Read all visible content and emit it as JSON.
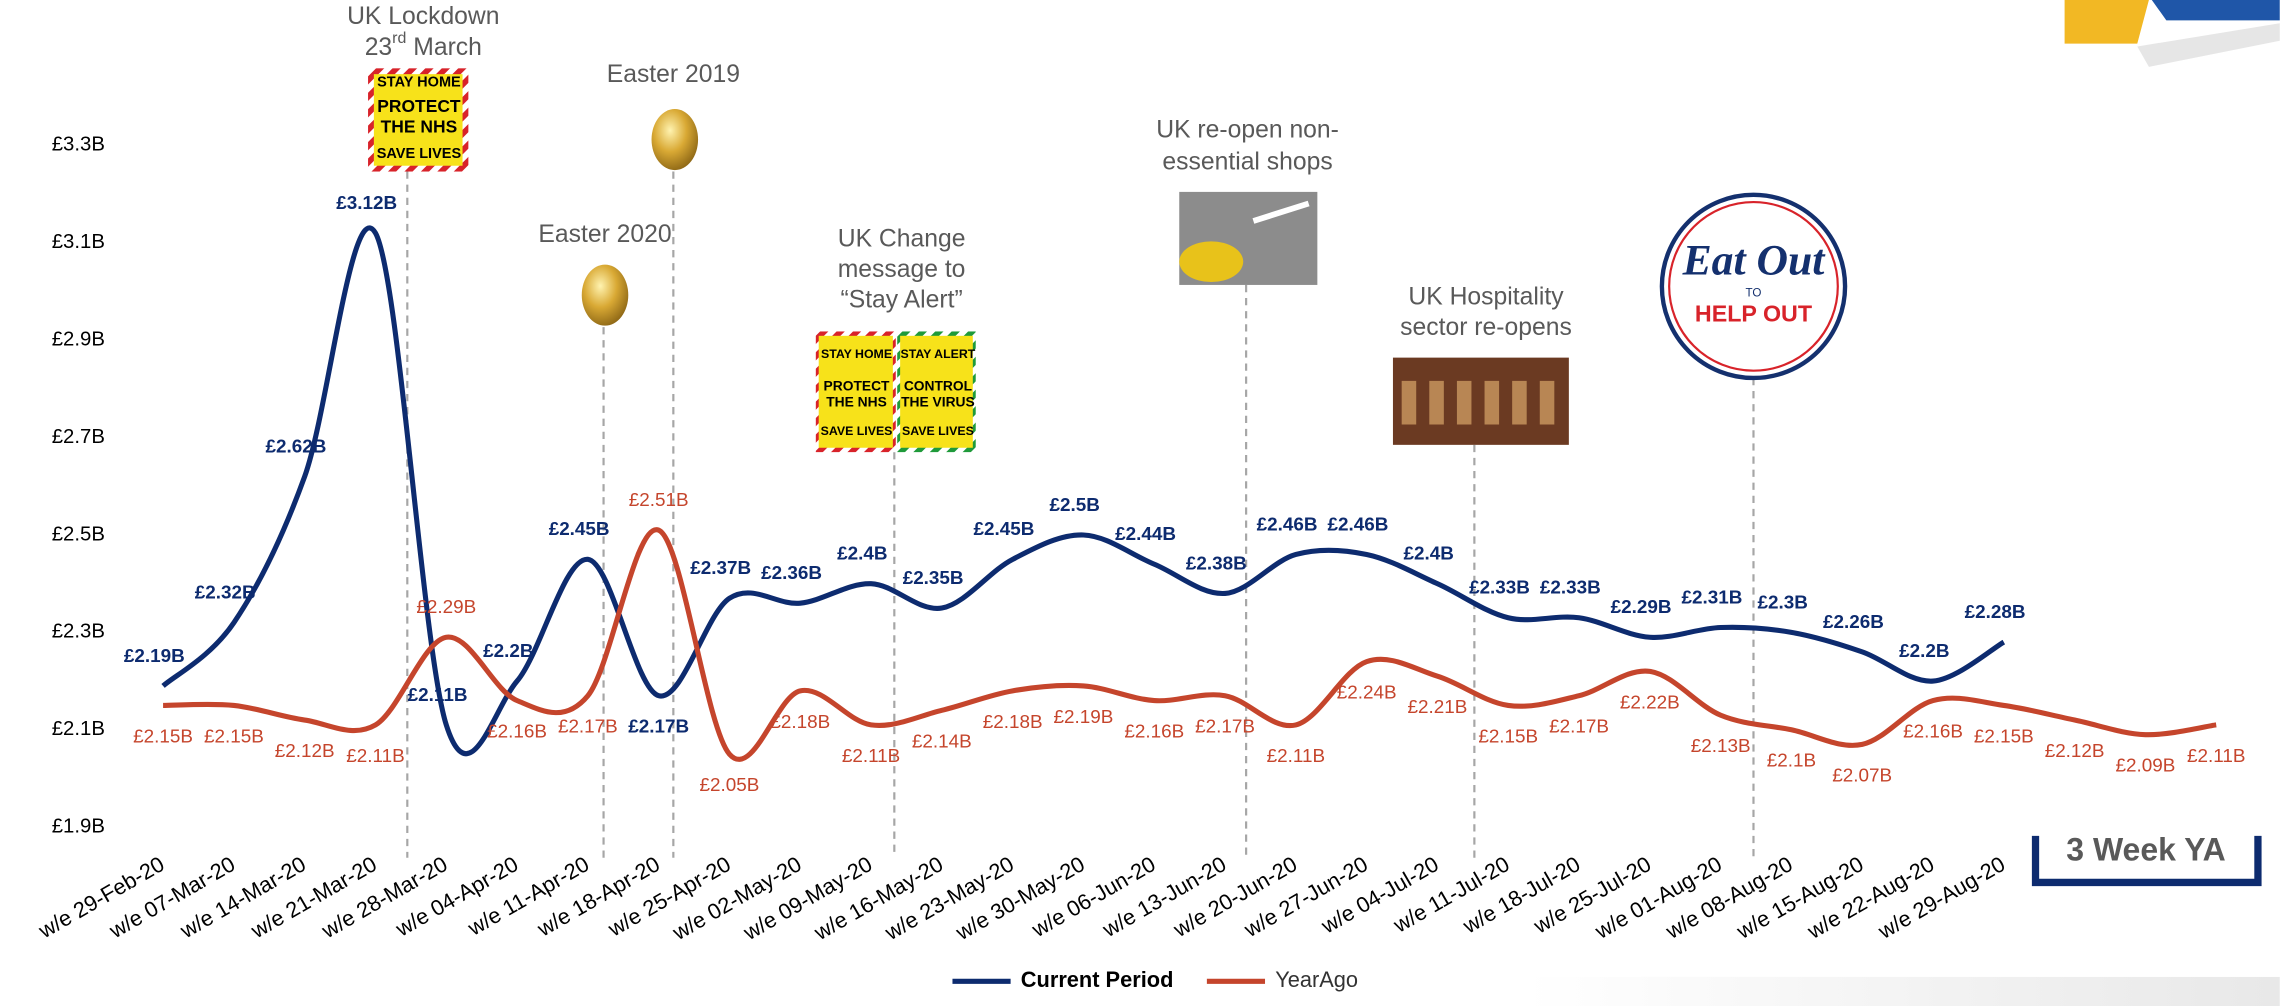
{
  "chart_data": {
    "type": "line",
    "categories": [
      "w/e 29-Feb-20",
      "w/e 07-Mar-20",
      "w/e 14-Mar-20",
      "w/e 21-Mar-20",
      "w/e 28-Mar-20",
      "w/e 04-Apr-20",
      "w/e 11-Apr-20",
      "w/e 18-Apr-20",
      "w/e 25-Apr-20",
      "w/e 02-May-20",
      "w/e 09-May-20",
      "w/e 16-May-20",
      "w/e 23-May-20",
      "w/e 30-May-20",
      "w/e 06-Jun-20",
      "w/e 13-Jun-20",
      "w/e 20-Jun-20",
      "w/e 27-Jun-20",
      "w/e 04-Jul-20",
      "w/e 11-Jul-20",
      "w/e 18-Jul-20",
      "w/e 25-Jul-20",
      "w/e 01-Aug-20",
      "w/e 08-Aug-20",
      "w/e 15-Aug-20",
      "w/e 22-Aug-20",
      "w/e 29-Aug-20",
      null,
      null,
      null
    ],
    "series": [
      {
        "name": "Current Period",
        "color": "#0d2b6f",
        "values": [
          2.19,
          2.32,
          2.62,
          3.12,
          2.11,
          2.2,
          2.45,
          2.17,
          2.37,
          2.36,
          2.4,
          2.35,
          2.45,
          2.5,
          2.44,
          2.38,
          2.46,
          2.46,
          2.4,
          2.33,
          2.33,
          2.29,
          2.31,
          2.3,
          2.26,
          2.2,
          2.28,
          null,
          null,
          null
        ],
        "value_labels": [
          "£2.19B",
          "£2.32B",
          "£2.62B",
          "£3.12B",
          "£2.11B",
          "£2.2B",
          "£2.45B",
          "£2.17B",
          "£2.37B",
          "£2.36B",
          "£2.4B",
          "£2.35B",
          "£2.45B",
          "£2.5B",
          "£2.44B",
          "£2.38B",
          "£2.46B",
          "£2.46B",
          "£2.4B",
          "£2.33B",
          "£2.33B",
          "£2.29B",
          "£2.31B",
          "£2.3B",
          "£2.26B",
          "£2.2B",
          "£2.28B",
          null,
          null,
          null
        ]
      },
      {
        "name": "YearAgo",
        "color": "#c5452c",
        "values": [
          2.15,
          2.15,
          2.12,
          2.11,
          2.29,
          2.16,
          2.17,
          2.51,
          2.05,
          2.18,
          2.11,
          2.14,
          2.18,
          2.19,
          2.16,
          2.17,
          2.11,
          2.24,
          2.21,
          2.15,
          2.17,
          2.22,
          2.13,
          2.1,
          2.07,
          2.16,
          2.15,
          2.12,
          2.09,
          2.11
        ],
        "value_labels": [
          "£2.15B",
          "£2.15B",
          "£2.12B",
          "£2.11B",
          "£2.29B",
          "£2.16B",
          "£2.17B",
          "£2.51B",
          "£2.05B",
          "£2.18B",
          "£2.11B",
          "£2.14B",
          "£2.18B",
          "£2.19B",
          "£2.16B",
          "£2.17B",
          "£2.11B",
          "£2.24B",
          "£2.21B",
          "£2.15B",
          "£2.17B",
          "£2.22B",
          "£2.13B",
          "£2.1B",
          "£2.07B",
          "£2.16B",
          "£2.15B",
          "£2.12B",
          "£2.09B",
          "£2.11B"
        ]
      }
    ],
    "ylim": [
      1.9,
      3.3
    ],
    "yticks": [
      {
        "value": 1.9,
        "label": "£1.9B"
      },
      {
        "value": 2.1,
        "label": "£2.1B"
      },
      {
        "value": 2.3,
        "label": "£2.3B"
      },
      {
        "value": 2.5,
        "label": "£2.5B"
      },
      {
        "value": 2.7,
        "label": "£2.7B"
      },
      {
        "value": 2.9,
        "label": "£2.9B"
      },
      {
        "value": 3.1,
        "label": "£3.1B"
      },
      {
        "value": 3.3,
        "label": "£3.3B"
      }
    ],
    "grid": false,
    "legend": "bottom",
    "annotations": [
      {
        "lines": [
          "UK Lockdown"
        ],
        "date_parts": [
          "23",
          "rd",
          " March"
        ],
        "sign": [
          "STAY HOME",
          "PROTECT",
          "THE NHS",
          "SAVE LIVES"
        ]
      },
      {
        "lines": [
          "Easter 2020"
        ]
      },
      {
        "lines": [
          "Easter 2019"
        ]
      },
      {
        "lines": [
          "UK Change",
          "message to",
          "“Stay Alert”"
        ],
        "sign": [
          "STAY HOME",
          "PROTECT",
          "THE NHS",
          "SAVE LIVES",
          "STAY ALERT",
          "CONTROL",
          "THE VIRUS",
          "SAVE LIVES"
        ]
      },
      {
        "lines": [
          "UK re-open non-",
          "essential shops"
        ]
      },
      {
        "lines": [
          "UK Hospitality",
          "sector re-opens"
        ]
      },
      {
        "sign": [
          "Eat Out",
          "TO",
          "HELP OUT"
        ]
      }
    ],
    "note": "3 Week YA"
  }
}
